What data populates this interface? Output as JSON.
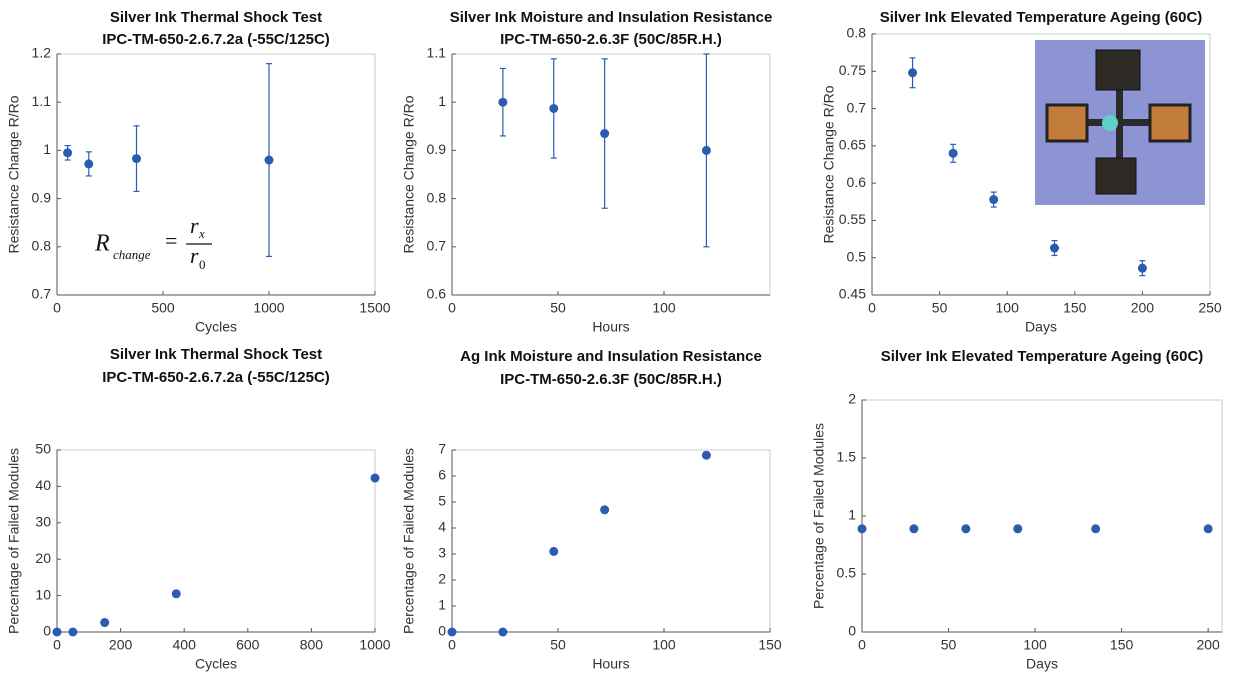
{
  "chart_data": [
    {
      "type": "scatter",
      "title": "Silver Ink Thermal Shock Test",
      "subtitle": "IPC-TM-650-2.6.7.2a (-55C/125C)",
      "x_label": "Cycles",
      "y_label": "Resistance Change R/Ro",
      "x": [
        50,
        150,
        375,
        1000
      ],
      "values": [
        0.995,
        0.972,
        0.983,
        0.98
      ],
      "errors": [
        0.015,
        0.025,
        0.068,
        0.2
      ],
      "xlim": [
        0,
        1500
      ],
      "xticks": [
        0,
        500,
        1000,
        1500
      ],
      "ylim": [
        0.7,
        1.2
      ],
      "yticks": [
        0.7,
        0.8,
        0.9,
        1,
        1.1,
        1.2
      ],
      "color": "#2a5db0",
      "grid": false,
      "annotation": {
        "lhs": "R",
        "lhs_sub": "change",
        "equals": "=",
        "num": "r",
        "num_sub": "x",
        "den": "r",
        "den_sub": "0"
      }
    },
    {
      "type": "scatter",
      "title": "Silver Ink Moisture and Insulation Resistance",
      "subtitle": "IPC-TM-650-2.6.3F (50C/85R.H.)",
      "x_label": "Hours",
      "y_label": "Resistance Change R/Ro",
      "x": [
        24,
        48,
        72,
        120
      ],
      "values": [
        1.0,
        0.987,
        0.935,
        0.9
      ],
      "errors": [
        0.07,
        0.103,
        0.155,
        0.2
      ],
      "xlim": [
        0,
        150
      ],
      "xticks": [
        0,
        50,
        100
      ],
      "ylim": [
        0.6,
        1.1
      ],
      "yticks": [
        0.6,
        0.7,
        0.8,
        0.9,
        1,
        1.1
      ],
      "color": "#2a5db0",
      "grid": false
    },
    {
      "type": "scatter",
      "title": "Silver Ink Elevated Temperature Ageing (60C)",
      "x_label": "Days",
      "y_label": "Resistance Change R/Ro",
      "x": [
        30,
        60,
        90,
        135,
        200
      ],
      "values": [
        0.748,
        0.64,
        0.578,
        0.513,
        0.486
      ],
      "errors": [
        0.02,
        0.012,
        0.01,
        0.01,
        0.01
      ],
      "xlim": [
        0,
        250
      ],
      "xticks": [
        0,
        50,
        100,
        150,
        200,
        250
      ],
      "ylim": [
        0.45,
        0.8
      ],
      "yticks": [
        0.45,
        0.5,
        0.55,
        0.6,
        0.65,
        0.7,
        0.75,
        0.8
      ],
      "color": "#2a5db0",
      "grid": false
    },
    {
      "type": "scatter",
      "title": "Silver Ink Thermal Shock Test",
      "subtitle": "IPC-TM-650-2.6.7.2a (-55C/125C)",
      "x_label": "Cycles",
      "y_label": "Percentage of Failed Modules",
      "x": [
        0,
        50,
        150,
        375,
        1000
      ],
      "values": [
        0,
        0,
        2.6,
        10.5,
        42.3
      ],
      "xlim": [
        0,
        1000
      ],
      "xticks": [
        0,
        200,
        400,
        600,
        800,
        1000
      ],
      "ylim": [
        0,
        50
      ],
      "yticks": [
        0,
        10,
        20,
        30,
        40,
        50
      ],
      "color": "#2a5db0",
      "grid": false
    },
    {
      "type": "scatter",
      "title": "Ag Ink Moisture and Insulation Resistance",
      "subtitle": "IPC-TM-650-2.6.3F (50C/85R.H.)",
      "x_label": "Hours",
      "y_label": "Percentage of Failed Modules",
      "x": [
        0,
        24,
        48,
        72,
        120
      ],
      "values": [
        0,
        0,
        3.1,
        4.7,
        6.8
      ],
      "xlim": [
        0,
        150
      ],
      "xticks": [
        0,
        50,
        100,
        150
      ],
      "ylim": [
        0,
        7
      ],
      "yticks": [
        0,
        1,
        2,
        3,
        4,
        5,
        6,
        7
      ],
      "color": "#2a5db0",
      "grid": false
    },
    {
      "type": "scatter",
      "title": "Silver Ink Elevated Temperature Ageing (60C)",
      "x_label": "Days",
      "y_label": "Percentage of Failed Modules",
      "x": [
        0,
        30,
        60,
        90,
        135,
        200
      ],
      "values": [
        0.89,
        0.89,
        0.89,
        0.89,
        0.89,
        0.89
      ],
      "xlim": [
        0,
        208
      ],
      "xticks": [
        0,
        50,
        100,
        150,
        200
      ],
      "ylim": [
        0,
        2
      ],
      "yticks": [
        0,
        0.5,
        1,
        1.5,
        2
      ],
      "color": "#2a5db0",
      "grid": false
    }
  ]
}
